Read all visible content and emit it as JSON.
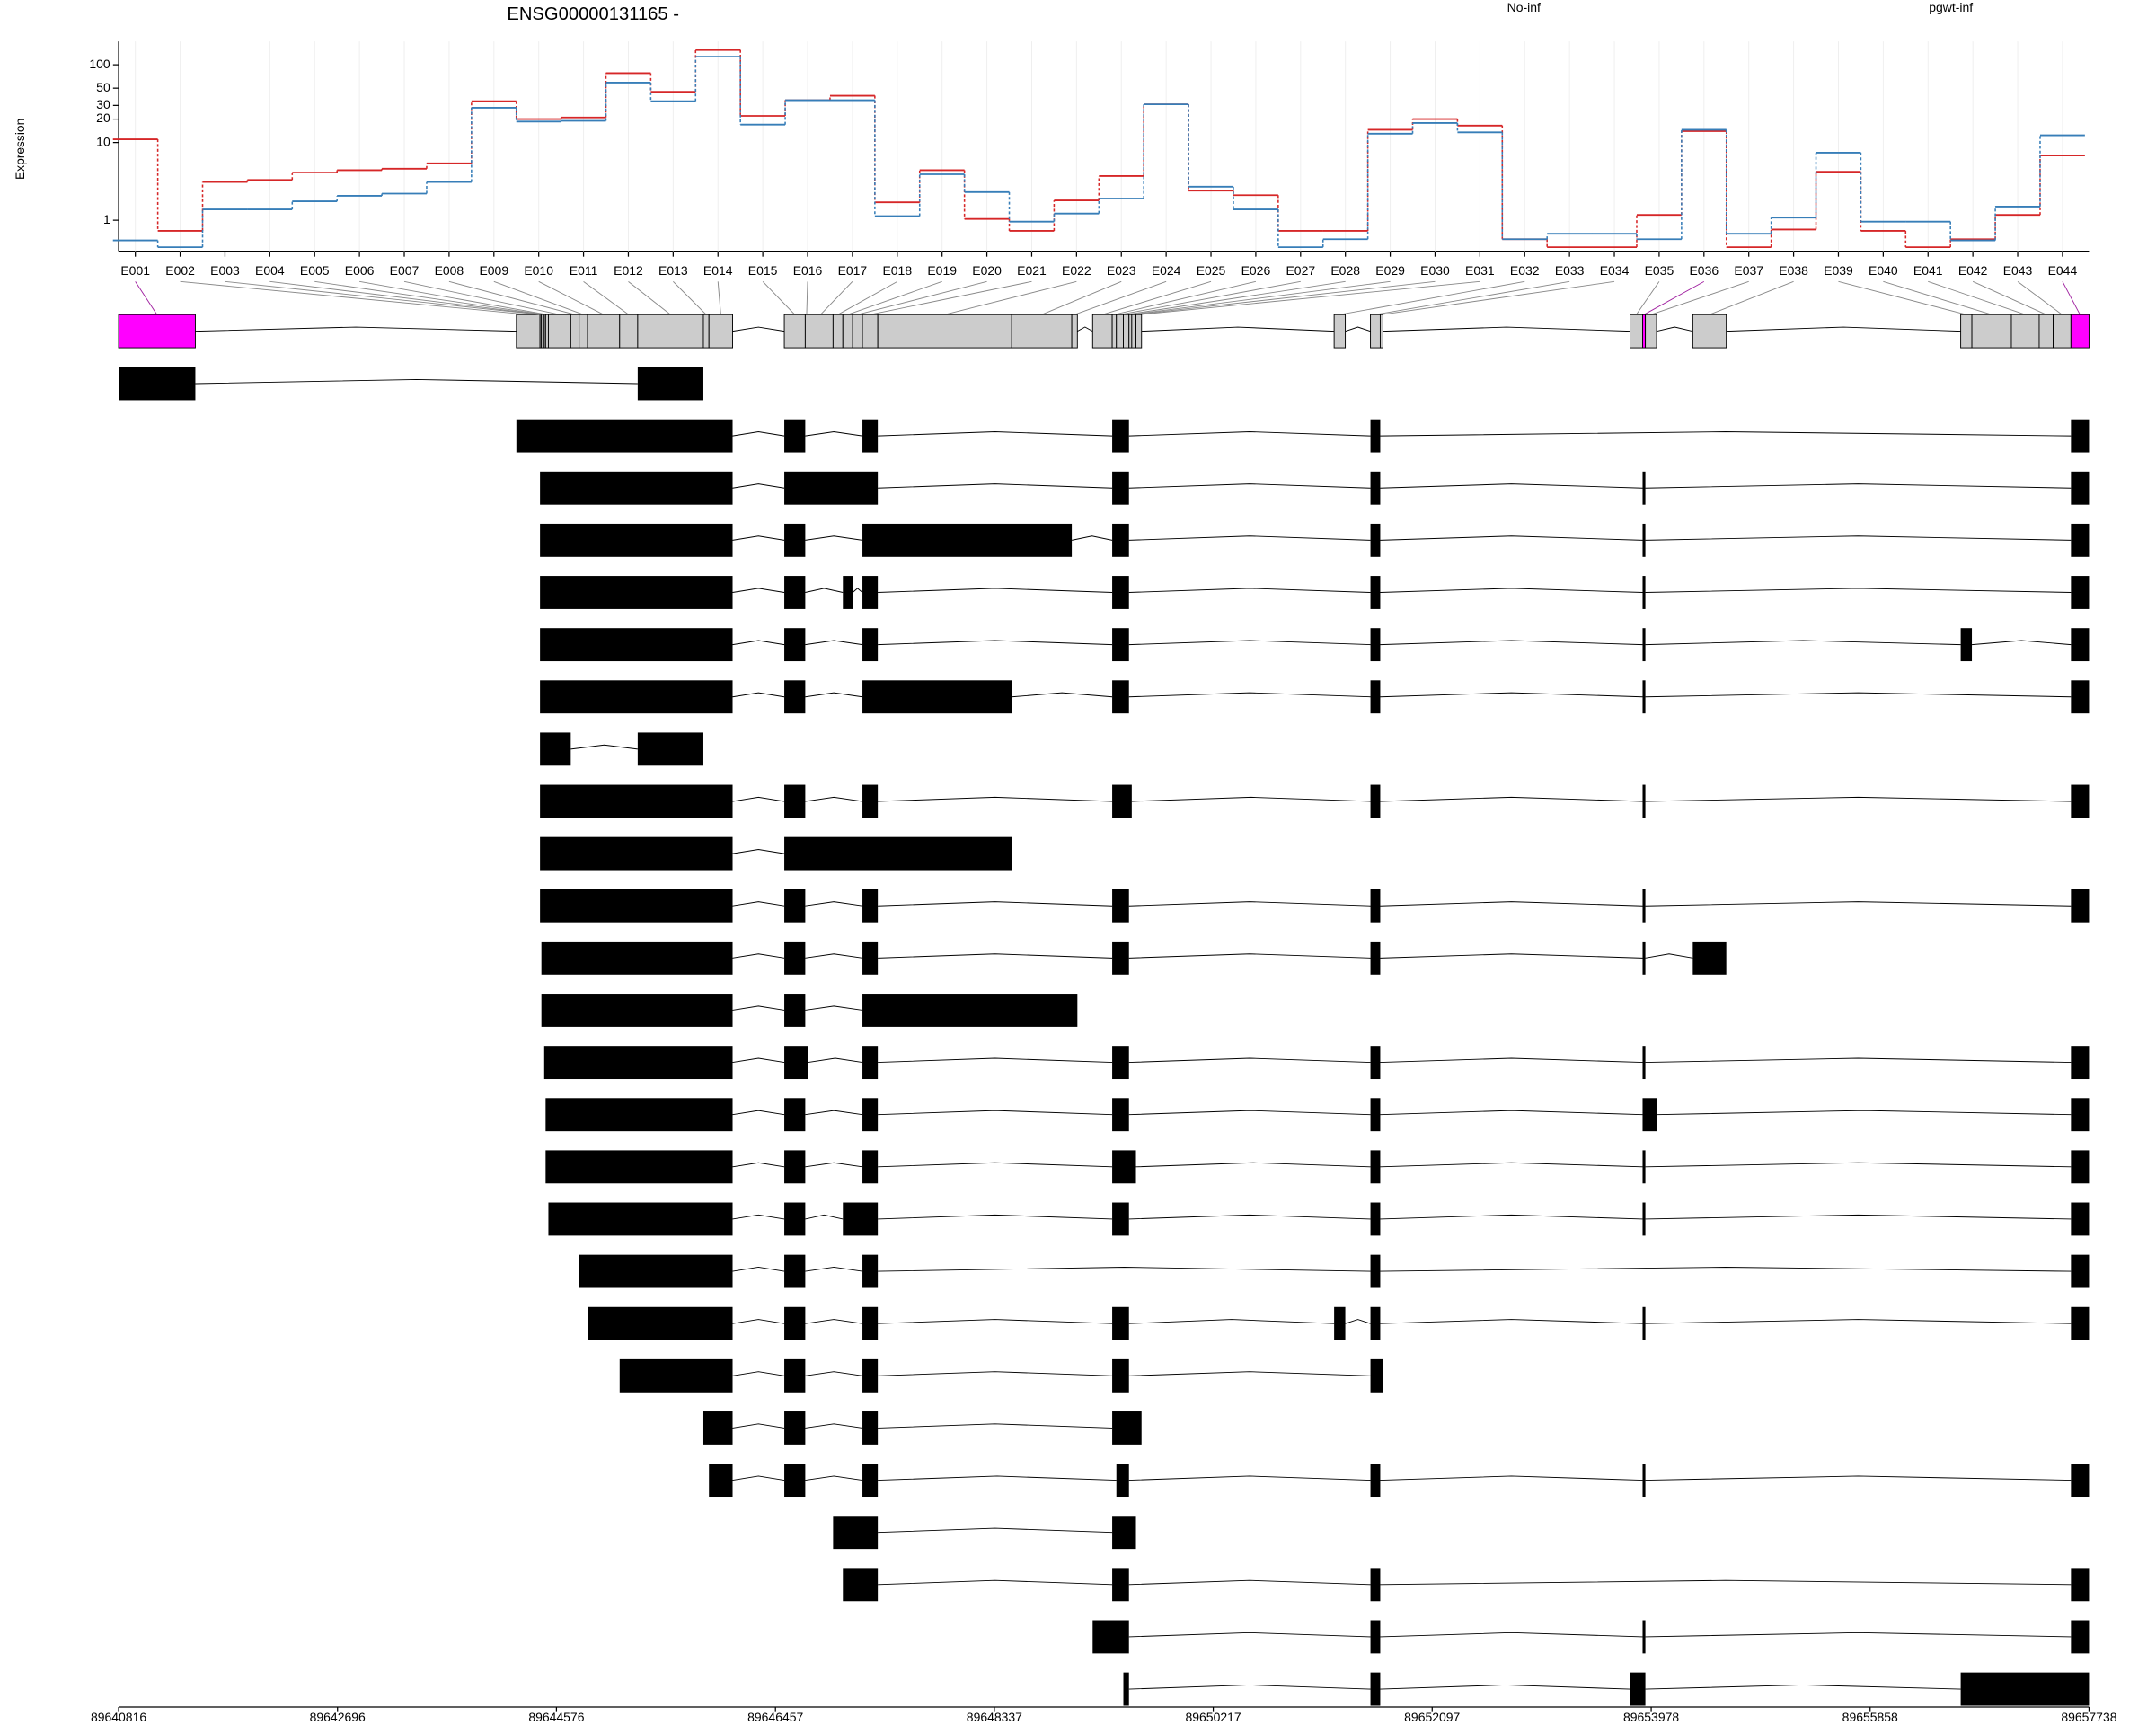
{
  "chart_data": {
    "type": "line",
    "title": "ENSG00000131165 -",
    "y_label": "Expression",
    "categories": [
      "E001",
      "E002",
      "E003",
      "E004",
      "E005",
      "E006",
      "E007",
      "E008",
      "E009",
      "E010",
      "E011",
      "E012",
      "E013",
      "E014",
      "E015",
      "E016",
      "E017",
      "E018",
      "E019",
      "E020",
      "E021",
      "E022",
      "E023",
      "E024",
      "E025",
      "E026",
      "E027",
      "E028",
      "E029",
      "E030",
      "E031",
      "E032",
      "E033",
      "E034",
      "E035",
      "E036",
      "E037",
      "E038",
      "E039",
      "E040",
      "E041",
      "E042",
      "E043",
      "E044"
    ],
    "series": [
      {
        "name": "No-inf",
        "color": "#d62728",
        "values": [
          11,
          0.73,
          3.1,
          3.3,
          4.1,
          4.4,
          4.6,
          5.4,
          34,
          20,
          21,
          78,
          45,
          155,
          22,
          35,
          40,
          1.7,
          4.4,
          1.04,
          0.73,
          1.8,
          3.7,
          31,
          2.4,
          2.1,
          0.73,
          0.73,
          14.6,
          20,
          16.5,
          0.57,
          0.45,
          0.45,
          1.17,
          14,
          0.45,
          0.76,
          4.2,
          0.73,
          0.45,
          0.57,
          1.17,
          6.8
        ]
      },
      {
        "name": "pgwt-inf",
        "color": "#377eb8",
        "values": [
          0.55,
          0.45,
          1.38,
          1.38,
          1.75,
          2.06,
          2.2,
          3.1,
          28,
          18.6,
          19,
          59,
          34,
          127,
          17,
          35,
          35,
          1.13,
          3.9,
          2.3,
          0.96,
          1.22,
          1.9,
          31,
          2.7,
          1.38,
          0.45,
          0.57,
          13,
          17.8,
          13.5,
          0.57,
          0.67,
          0.67,
          0.57,
          14.6,
          0.67,
          1.08,
          7.4,
          0.96,
          0.96,
          0.55,
          1.5,
          12.4
        ]
      }
    ],
    "ylim": [
      0.4,
      200
    ],
    "yticks": [
      1,
      10,
      20,
      30,
      50,
      100
    ],
    "log_scale": true,
    "grid": true,
    "xlim": [
      89640816,
      89657738
    ],
    "xticks": [
      89640816,
      89642696,
      89644576,
      89646457,
      89648337,
      89650217,
      89652097,
      89653978,
      89655858,
      89657738
    ],
    "gene_color": "#cccccc",
    "significant_color": "#ff00ff",
    "significant_indices": [
      0,
      35,
      43
    ],
    "exon_bins": [
      [
        89640816,
        89641475
      ],
      [
        89644232,
        89644435
      ],
      [
        89644435,
        89644447
      ],
      [
        89644447,
        89644471
      ],
      [
        89644471,
        89644483
      ],
      [
        89644483,
        89644507
      ],
      [
        89644507,
        89644699
      ],
      [
        89644699,
        89644771
      ],
      [
        89644771,
        89644843
      ],
      [
        89644843,
        89645119
      ],
      [
        89645119,
        89645274
      ],
      [
        89645274,
        89645838
      ],
      [
        89645838,
        89645886
      ],
      [
        89645886,
        89646089
      ],
      [
        89646533,
        89646713
      ],
      [
        89646713,
        89646737
      ],
      [
        89646737,
        89646952
      ],
      [
        89646952,
        89647036
      ],
      [
        89647036,
        89647120
      ],
      [
        89647120,
        89647204
      ],
      [
        89647204,
        89647336
      ],
      [
        89647336,
        89648486
      ],
      [
        89648486,
        89649002
      ],
      [
        89649002,
        89649050
      ],
      [
        89649181,
        89649349
      ],
      [
        89649349,
        89649385
      ],
      [
        89649385,
        89649445
      ],
      [
        89649445,
        89649493
      ],
      [
        89649493,
        89649517
      ],
      [
        89649517,
        89649553
      ],
      [
        89649553,
        89649601
      ],
      [
        89651255,
        89651351
      ],
      [
        89651567,
        89651651
      ],
      [
        89651651,
        89651674
      ],
      [
        89653796,
        89653904
      ],
      [
        89653904,
        89653928
      ],
      [
        89653928,
        89654024
      ],
      [
        89654335,
        89654623
      ],
      [
        89656636,
        89656732
      ],
      [
        89656732,
        89657071
      ],
      [
        89657071,
        89657310
      ],
      [
        89657310,
        89657430
      ],
      [
        89657430,
        89657583
      ],
      [
        89657583,
        89657738
      ]
    ],
    "transcripts": [
      [
        [
          89640816,
          89641475
        ],
        [
          89645274,
          89645838
        ]
      ],
      [
        [
          89644232,
          89646089
        ],
        [
          89646533,
          89646713
        ],
        [
          89647204,
          89647336
        ],
        [
          89649349,
          89649493
        ],
        [
          89651567,
          89651651
        ],
        [
          89657583,
          89657738
        ]
      ],
      [
        [
          89644435,
          89646089
        ],
        [
          89646533,
          89647336
        ],
        [
          89649349,
          89649493
        ],
        [
          89651567,
          89651651
        ],
        [
          89653904,
          89653928
        ],
        [
          89657583,
          89657738
        ]
      ],
      [
        [
          89644435,
          89646089
        ],
        [
          89646533,
          89646713
        ],
        [
          89647204,
          89649002
        ],
        [
          89649349,
          89649493
        ],
        [
          89651567,
          89651651
        ],
        [
          89653904,
          89653928
        ],
        [
          89657583,
          89657738
        ]
      ],
      [
        [
          89644435,
          89646089
        ],
        [
          89646533,
          89646713
        ],
        [
          89647036,
          89647120
        ],
        [
          89647204,
          89647336
        ],
        [
          89649349,
          89649493
        ],
        [
          89651567,
          89651651
        ],
        [
          89653904,
          89653928
        ],
        [
          89657583,
          89657738
        ]
      ],
      [
        [
          89644435,
          89646089
        ],
        [
          89646533,
          89646713
        ],
        [
          89647204,
          89647336
        ],
        [
          89649349,
          89649493
        ],
        [
          89651567,
          89651651
        ],
        [
          89653904,
          89653928
        ],
        [
          89656636,
          89656732
        ],
        [
          89657583,
          89657738
        ]
      ],
      [
        [
          89644435,
          89646089
        ],
        [
          89646533,
          89646713
        ],
        [
          89647204,
          89648486
        ],
        [
          89649349,
          89649493
        ],
        [
          89651567,
          89651651
        ],
        [
          89653904,
          89653928
        ],
        [
          89657583,
          89657738
        ]
      ],
      [
        [
          89644435,
          89644699
        ],
        [
          89645274,
          89645838
        ]
      ],
      [
        [
          89644435,
          89646089
        ],
        [
          89646533,
          89646713
        ],
        [
          89647204,
          89647336
        ],
        [
          89649349,
          89649517
        ],
        [
          89651567,
          89651651
        ],
        [
          89653904,
          89653928
        ],
        [
          89657583,
          89657738
        ]
      ],
      [
        [
          89644435,
          89646089
        ],
        [
          89646533,
          89648486
        ]
      ],
      [
        [
          89644435,
          89646089
        ],
        [
          89646533,
          89646713
        ],
        [
          89647204,
          89647336
        ],
        [
          89649349,
          89649493
        ],
        [
          89651567,
          89651651
        ],
        [
          89653904,
          89653928
        ],
        [
          89657583,
          89657738
        ]
      ],
      [
        [
          89644447,
          89646089
        ],
        [
          89646533,
          89646713
        ],
        [
          89647204,
          89647336
        ],
        [
          89649349,
          89649493
        ],
        [
          89651567,
          89651651
        ],
        [
          89653904,
          89653928
        ],
        [
          89654335,
          89654623
        ]
      ],
      [
        [
          89644447,
          89646089
        ],
        [
          89646533,
          89646713
        ],
        [
          89647204,
          89649050
        ]
      ],
      [
        [
          89644471,
          89646089
        ],
        [
          89646533,
          89646737
        ],
        [
          89647204,
          89647336
        ],
        [
          89649349,
          89649493
        ],
        [
          89651567,
          89651651
        ],
        [
          89653904,
          89653928
        ],
        [
          89657583,
          89657738
        ]
      ],
      [
        [
          89644483,
          89646089
        ],
        [
          89646533,
          89646713
        ],
        [
          89647204,
          89647336
        ],
        [
          89649349,
          89649493
        ],
        [
          89651567,
          89651651
        ],
        [
          89653904,
          89654024
        ],
        [
          89657583,
          89657738
        ]
      ],
      [
        [
          89644483,
          89646089
        ],
        [
          89646533,
          89646713
        ],
        [
          89647204,
          89647336
        ],
        [
          89649349,
          89649553
        ],
        [
          89651567,
          89651651
        ],
        [
          89653904,
          89653928
        ],
        [
          89657583,
          89657738
        ]
      ],
      [
        [
          89644507,
          89646089
        ],
        [
          89646533,
          89646713
        ],
        [
          89647036,
          89647336
        ],
        [
          89649349,
          89649493
        ],
        [
          89651567,
          89651651
        ],
        [
          89653904,
          89653928
        ],
        [
          89657583,
          89657738
        ]
      ],
      [
        [
          89644771,
          89646089
        ],
        [
          89646533,
          89646713
        ],
        [
          89647204,
          89647336
        ],
        [
          89651567,
          89651651
        ],
        [
          89657583,
          89657738
        ]
      ],
      [
        [
          89644843,
          89646089
        ],
        [
          89646533,
          89646713
        ],
        [
          89647204,
          89647336
        ],
        [
          89649349,
          89649493
        ],
        [
          89651255,
          89651351
        ],
        [
          89651567,
          89651651
        ],
        [
          89653904,
          89653928
        ],
        [
          89657583,
          89657738
        ]
      ],
      [
        [
          89645119,
          89646089
        ],
        [
          89646533,
          89646713
        ],
        [
          89647204,
          89647336
        ],
        [
          89649349,
          89649493
        ],
        [
          89651567,
          89651674
        ]
      ],
      [
        [
          89645838,
          89646089
        ],
        [
          89646533,
          89646713
        ],
        [
          89647204,
          89647336
        ],
        [
          89649349,
          89649601
        ]
      ],
      [
        [
          89645886,
          89646089
        ],
        [
          89646533,
          89646713
        ],
        [
          89647204,
          89647336
        ],
        [
          89649385,
          89649493
        ],
        [
          89651567,
          89651651
        ],
        [
          89653904,
          89653928
        ],
        [
          89657583,
          89657738
        ]
      ],
      [
        [
          89646952,
          89647336
        ],
        [
          89649349,
          89649553
        ]
      ],
      [
        [
          89647036,
          89647336
        ],
        [
          89649349,
          89649493
        ],
        [
          89651567,
          89651651
        ],
        [
          89657583,
          89657738
        ]
      ],
      [
        [
          89649181,
          89649493
        ],
        [
          89651567,
          89651651
        ],
        [
          89653904,
          89653928
        ],
        [
          89657583,
          89657738
        ]
      ],
      [
        [
          89649445,
          89649493
        ],
        [
          89651567,
          89651651
        ],
        [
          89653796,
          89653928
        ],
        [
          89656636,
          89657738
        ]
      ]
    ]
  }
}
